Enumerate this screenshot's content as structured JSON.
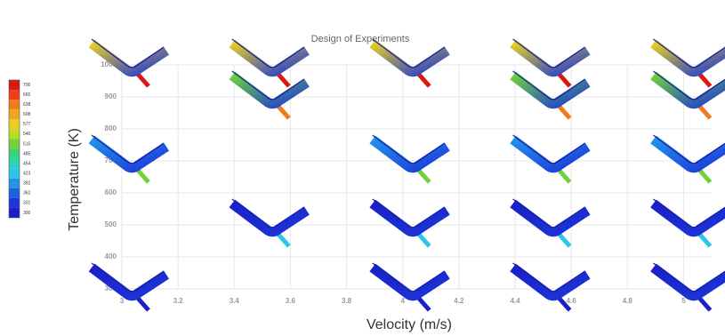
{
  "chart_data": {
    "type": "scatter",
    "title": "Design of Experiments",
    "x_label": "Velocity (m/s)",
    "y_label": "Temperature (K)",
    "x": [
      3,
      3.5,
      4,
      4.5,
      5,
      3.5,
      4.5,
      5,
      3,
      4,
      4.5,
      5,
      3.5,
      4,
      4.5,
      5,
      3,
      4,
      4.5,
      5
    ],
    "values": [
      1000,
      1000,
      1000,
      1000,
      1000,
      900,
      900,
      900,
      700,
      700,
      700,
      700,
      500,
      500,
      500,
      500,
      300,
      300,
      300,
      300
    ],
    "xlim": [
      3,
      5.1
    ],
    "xticks": [
      3,
      3.2,
      3.4,
      3.6,
      3.8,
      4,
      4.2,
      4.4,
      4.6,
      4.8,
      5
    ],
    "ylim": [
      300,
      1000
    ],
    "yticks": [
      300,
      400,
      500,
      600,
      700,
      800,
      900,
      1000
    ],
    "grid": true,
    "colorbar": {
      "labels": [
        700,
        665,
        638,
        608,
        577,
        546,
        515,
        485,
        454,
        423,
        392,
        362,
        331,
        300
      ],
      "colors": [
        "#d81a10",
        "#e8411a",
        "#f07a1c",
        "#f3a51f",
        "#e7cf22",
        "#b8dd25",
        "#6fd33a",
        "#3fcf7a",
        "#2fd2b6",
        "#2cc6e6",
        "#2392e9",
        "#1f5fe2",
        "#1c36d8",
        "#1a20c8"
      ]
    }
  }
}
